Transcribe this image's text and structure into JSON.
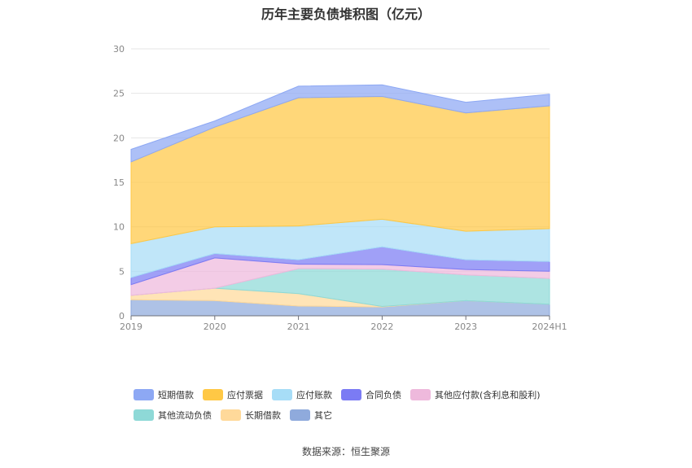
{
  "title": "历年主要负债堆积图（亿元）",
  "source": "数据来源：恒生聚源",
  "chart_data": {
    "type": "area",
    "stacked": true,
    "title": "历年主要负债堆积图（亿元）",
    "x": [
      "2019",
      "2020",
      "2021",
      "2022",
      "2023",
      "2024H1"
    ],
    "ylim": [
      0,
      30
    ],
    "yticks": [
      0,
      5,
      10,
      15,
      20,
      25,
      30
    ],
    "grid": true,
    "legend_position": "bottom",
    "series": [
      {
        "name": "其它",
        "color": "#8FAADC",
        "values": [
          1.8,
          1.7,
          1.1,
          1.0,
          1.7,
          1.3
        ]
      },
      {
        "name": "长期借款",
        "color": "#FFD99A",
        "values": [
          0.5,
          1.4,
          1.4,
          0.05,
          0.0,
          0.0
        ]
      },
      {
        "name": "其他流动负债",
        "color": "#8ED9D7",
        "values": [
          0.0,
          0.0,
          2.8,
          4.2,
          2.9,
          2.9
        ]
      },
      {
        "name": "其他应付款(含利息和股利)",
        "color": "#EEB9DC",
        "values": [
          1.2,
          3.4,
          0.5,
          0.5,
          0.6,
          0.8
        ]
      },
      {
        "name": "合同负债",
        "color": "#7B7BF4",
        "values": [
          0.8,
          0.5,
          0.5,
          2.0,
          1.1,
          1.1
        ]
      },
      {
        "name": "应付账款",
        "color": "#A7DDF7",
        "values": [
          3.8,
          3.0,
          3.8,
          3.1,
          3.2,
          3.7
        ]
      },
      {
        "name": "应付票据",
        "color": "#FFC845",
        "values": [
          9.2,
          11.2,
          14.4,
          13.8,
          13.3,
          13.8
        ]
      },
      {
        "name": "短期借款",
        "color": "#8DA8F4",
        "values": [
          1.4,
          0.7,
          1.3,
          1.3,
          1.2,
          1.3
        ]
      }
    ]
  },
  "legend": [
    [
      {
        "name": "短期借款",
        "color": "#8DA8F4"
      },
      {
        "name": "应付票据",
        "color": "#FFC845"
      },
      {
        "name": "应付账款",
        "color": "#A7DDF7"
      },
      {
        "name": "合同负债",
        "color": "#7B7BF4"
      },
      {
        "name": "其他应付款(含利息和股利)",
        "color": "#EEB9DC"
      }
    ],
    [
      {
        "name": "其他流动负债",
        "color": "#8ED9D7"
      },
      {
        "name": "长期借款",
        "color": "#FFD99A"
      },
      {
        "name": "其它",
        "color": "#8FAADC"
      }
    ]
  ]
}
